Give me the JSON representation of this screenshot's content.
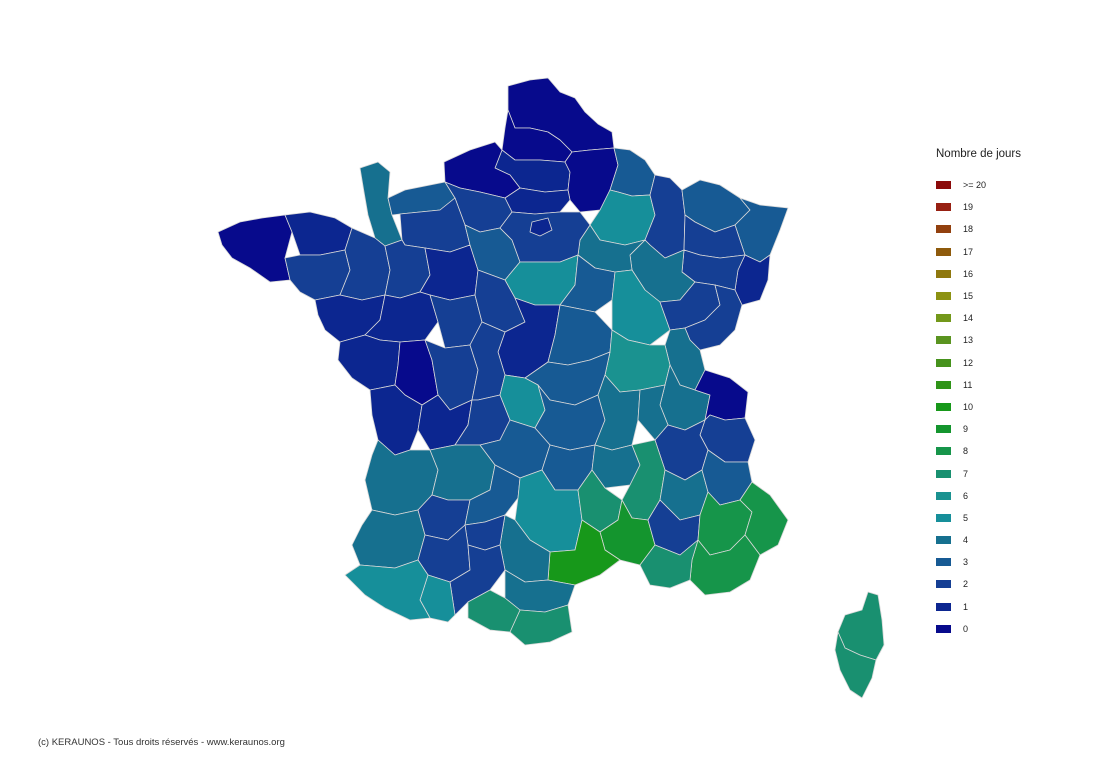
{
  "legend": {
    "title": "Nombre de jours",
    "items": [
      {
        "label": ">= 20",
        "color": "#8b0a0a"
      },
      {
        "label": "19",
        "color": "#972012"
      },
      {
        "label": "18",
        "color": "#92400e"
      },
      {
        "label": "17",
        "color": "#8e5a0c"
      },
      {
        "label": "16",
        "color": "#8f780e"
      },
      {
        "label": "15",
        "color": "#8c9212"
      },
      {
        "label": "14",
        "color": "#73981a"
      },
      {
        "label": "13",
        "color": "#5a9420"
      },
      {
        "label": "12",
        "color": "#46921c"
      },
      {
        "label": "11",
        "color": "#2f9418"
      },
      {
        "label": "10",
        "color": "#17981a"
      },
      {
        "label": "9",
        "color": "#14952e"
      },
      {
        "label": "8",
        "color": "#16954a"
      },
      {
        "label": "7",
        "color": "#199070"
      },
      {
        "label": "6",
        "color": "#1a9290"
      },
      {
        "label": "5",
        "color": "#168f9a"
      },
      {
        "label": "4",
        "color": "#16708f"
      },
      {
        "label": "3",
        "color": "#175a94"
      },
      {
        "label": "2",
        "color": "#153f94"
      },
      {
        "label": "1",
        "color": "#0c2690"
      },
      {
        "label": "0",
        "color": "#070a8c"
      }
    ]
  },
  "copyright": "(c) KERAUNOS - Tous droits réservés - www.keraunos.org",
  "map": {
    "regions": [
      {
        "id": "nord",
        "value": 0
      },
      {
        "id": "pas-de-calais",
        "value": 0
      },
      {
        "id": "somme",
        "value": 1
      },
      {
        "id": "seine-maritime",
        "value": 0
      },
      {
        "id": "aisne",
        "value": 0
      },
      {
        "id": "oise",
        "value": 1
      },
      {
        "id": "ardennes",
        "value": 3
      },
      {
        "id": "marne",
        "value": 5
      },
      {
        "id": "meuse",
        "value": 2
      },
      {
        "id": "moselle",
        "value": 3
      },
      {
        "id": "bas-rhin",
        "value": 3
      },
      {
        "id": "haut-rhin",
        "value": 1
      },
      {
        "id": "meurthe-et-moselle",
        "value": 2
      },
      {
        "id": "vosges",
        "value": 2
      },
      {
        "id": "haute-marne",
        "value": 4
      },
      {
        "id": "aube",
        "value": 4
      },
      {
        "id": "manche",
        "value": 4
      },
      {
        "id": "calvados",
        "value": 3
      },
      {
        "id": "eure",
        "value": 2
      },
      {
        "id": "orne",
        "value": 2
      },
      {
        "id": "finistere",
        "value": 0
      },
      {
        "id": "cotes-d-armor",
        "value": 1
      },
      {
        "id": "morbihan",
        "value": 2
      },
      {
        "id": "ille-et-vilaine",
        "value": 2
      },
      {
        "id": "mayenne",
        "value": 2
      },
      {
        "id": "sarthe",
        "value": 1
      },
      {
        "id": "eure-et-loir",
        "value": 3
      },
      {
        "id": "ile-de-france",
        "value": 2
      },
      {
        "id": "paris",
        "value": 1
      },
      {
        "id": "loiret",
        "value": 5
      },
      {
        "id": "yonne",
        "value": 3
      },
      {
        "id": "cote-d-or",
        "value": 5
      },
      {
        "id": "haute-saone",
        "value": 2
      },
      {
        "id": "doubs",
        "value": 2
      },
      {
        "id": "jura",
        "value": 4
      },
      {
        "id": "loire-atlantique",
        "value": 1
      },
      {
        "id": "maine-et-loire",
        "value": 1
      },
      {
        "id": "indre-et-loire",
        "value": 2
      },
      {
        "id": "loir-et-cher",
        "value": 2
      },
      {
        "id": "cher",
        "value": 1
      },
      {
        "id": "nievre",
        "value": 3
      },
      {
        "id": "saone-et-loire",
        "value": 6
      },
      {
        "id": "ain",
        "value": 4
      },
      {
        "id": "haute-savoie",
        "value": 0
      },
      {
        "id": "savoie",
        "value": 2
      },
      {
        "id": "vendee",
        "value": 1
      },
      {
        "id": "deux-sevres",
        "value": 0
      },
      {
        "id": "vienne",
        "value": 2
      },
      {
        "id": "indre",
        "value": 2
      },
      {
        "id": "allier",
        "value": 3
      },
      {
        "id": "charente-maritime",
        "value": 1
      },
      {
        "id": "charente",
        "value": 1
      },
      {
        "id": "haute-vienne",
        "value": 2
      },
      {
        "id": "creuse",
        "value": 5
      },
      {
        "id": "puy-de-dome",
        "value": 3
      },
      {
        "id": "loire",
        "value": 4
      },
      {
        "id": "rhone",
        "value": 4
      },
      {
        "id": "isere",
        "value": 2
      },
      {
        "id": "gironde",
        "value": 4
      },
      {
        "id": "dordogne",
        "value": 4
      },
      {
        "id": "correze",
        "value": 3
      },
      {
        "id": "cantal",
        "value": 3
      },
      {
        "id": "haute-loire",
        "value": 4
      },
      {
        "id": "ardeche",
        "value": 7
      },
      {
        "id": "drome",
        "value": 4
      },
      {
        "id": "hautes-alpes",
        "value": 3
      },
      {
        "id": "landes",
        "value": 4
      },
      {
        "id": "lot-et-garonne",
        "value": 2
      },
      {
        "id": "lot",
        "value": 3
      },
      {
        "id": "aveyron",
        "value": 5
      },
      {
        "id": "lozere",
        "value": 7
      },
      {
        "id": "gard",
        "value": 9
      },
      {
        "id": "vaucluse",
        "value": 2
      },
      {
        "id": "alpes-de-haute-provence",
        "value": 8
      },
      {
        "id": "alpes-maritimes",
        "value": 8
      },
      {
        "id": "var",
        "value": 8
      },
      {
        "id": "bouches-du-rhone",
        "value": 7
      },
      {
        "id": "herault",
        "value": 10
      },
      {
        "id": "tarn",
        "value": 4
      },
      {
        "id": "tarn-et-garonne",
        "value": 2
      },
      {
        "id": "gers",
        "value": 2
      },
      {
        "id": "haute-garonne",
        "value": 2
      },
      {
        "id": "aude",
        "value": 4
      },
      {
        "id": "pyrenees-orientales",
        "value": 7
      },
      {
        "id": "ariege",
        "value": 7
      },
      {
        "id": "hautes-pyrenees",
        "value": 5
      },
      {
        "id": "pyrenees-atlantiques",
        "value": 5
      },
      {
        "id": "haute-corse",
        "value": 7
      },
      {
        "id": "corse-du-sud",
        "value": 7
      }
    ]
  }
}
